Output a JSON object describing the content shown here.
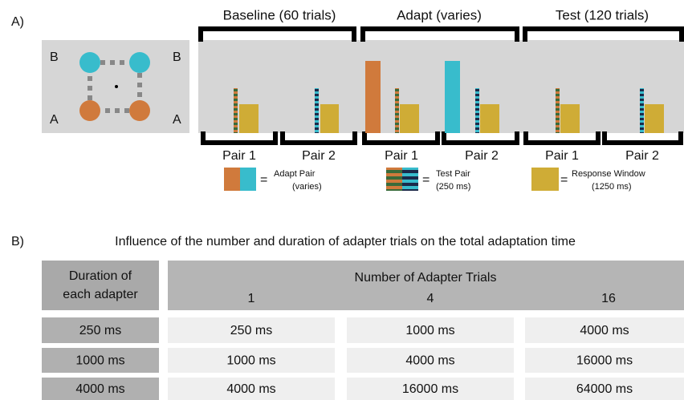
{
  "panel_a": {
    "label": "A)",
    "corner_labels": {
      "top_left": "B",
      "top_right": "B",
      "bottom_left": "A",
      "bottom_right": "A"
    },
    "phases": [
      "Baseline (60 trials)",
      "Adapt (varies)",
      "Test (120 trials)"
    ],
    "pairs": [
      "Pair 1",
      "Pair 2",
      "Pair 1",
      "Pair 2",
      "Pair 1",
      "Pair 2"
    ],
    "legend": [
      {
        "symbol": "=",
        "label": "Adapt Pair",
        "note": "(varies)"
      },
      {
        "symbol": "=",
        "label": "Test Pair",
        "note": "(250 ms)"
      },
      {
        "symbol": "=",
        "label": "Response Window",
        "note": "(1250 ms)"
      }
    ]
  },
  "panel_b": {
    "label": "B)",
    "title": "Influence of the number and duration of adapter trials on the total adaptation time",
    "table": {
      "row_header": [
        "Duration of",
        "each adapter"
      ],
      "column_header": "Number of Adapter Trials",
      "columns": [
        "1",
        "4",
        "16"
      ],
      "rows": [
        [
          "250 ms",
          "250 ms",
          "1000 ms",
          "4000 ms"
        ],
        [
          "1000 ms",
          "1000 ms",
          "4000 ms",
          "16000 ms"
        ],
        [
          "4000 ms",
          "4000 ms",
          "16000 ms",
          "64000 ms"
        ]
      ]
    }
  }
}
